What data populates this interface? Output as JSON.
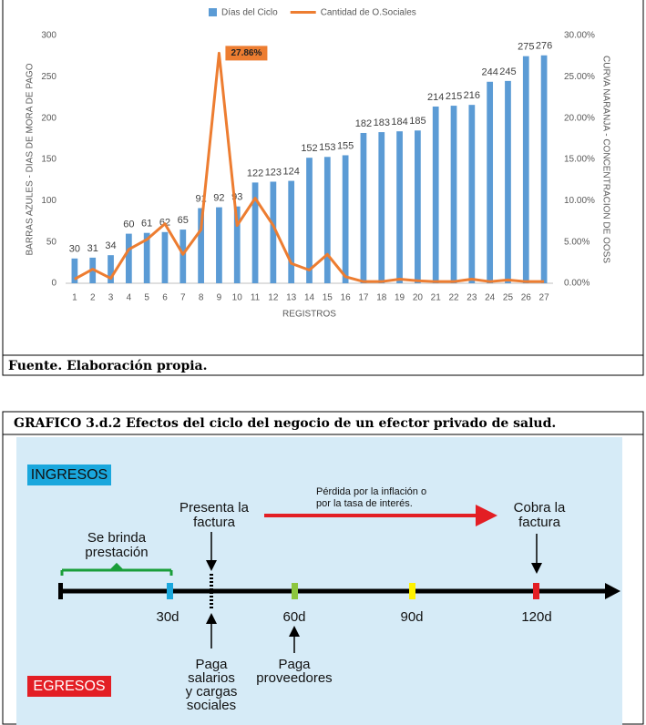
{
  "chart_data": {
    "type": "bar",
    "categories": [
      "1",
      "2",
      "3",
      "4",
      "5",
      "6",
      "7",
      "8",
      "9",
      "10",
      "11",
      "12",
      "13",
      "14",
      "15",
      "16",
      "17",
      "18",
      "19",
      "20",
      "21",
      "22",
      "23",
      "24",
      "25",
      "26",
      "27"
    ],
    "series": [
      {
        "name": "Días del Ciclo",
        "type": "bar",
        "color": "#5b9bd5",
        "values": [
          30,
          31,
          34,
          60,
          61,
          62,
          65,
          91,
          92,
          93,
          122,
          123,
          124,
          152,
          153,
          155,
          182,
          183,
          184,
          185,
          214,
          215,
          216,
          244,
          245,
          275,
          276
        ]
      },
      {
        "name": "Cantidad de O.Sociales",
        "type": "line",
        "color": "#ed7d31",
        "axis": "y2",
        "values": [
          0.5,
          1.7,
          0.6,
          4.1,
          5.3,
          7.2,
          3.5,
          6.5,
          27.86,
          7,
          10.3,
          7,
          2.4,
          1.6,
          3.5,
          0.8,
          0.2,
          0.2,
          0.5,
          0.3,
          0.2,
          0.2,
          0.5,
          0.2,
          0.4,
          0.2,
          0.2
        ],
        "value_labels": [
          null,
          null,
          null,
          null,
          null,
          null,
          null,
          null,
          "27.86%",
          null,
          null,
          null,
          null,
          null,
          null,
          null,
          null,
          null,
          null,
          null,
          null,
          null,
          null,
          null,
          null,
          null,
          null
        ]
      }
    ],
    "xlabel": "REGISTROS",
    "ylabel": "BARRAS AZULES - DIAS DE MORA DE PAGO",
    "y2label": "CURVA NARANJA - CONCENTRACION DE OOSS",
    "ylim": [
      0,
      300
    ],
    "yticks": [
      0,
      50,
      100,
      150,
      200,
      250,
      300
    ],
    "y2lim": [
      0,
      30
    ],
    "y2ticks": [
      {
        "value": 0,
        "label": "0.00%"
      },
      {
        "value": 5,
        "label": "5.00%"
      },
      {
        "value": 10,
        "label": "10.00%"
      },
      {
        "value": 15,
        "label": "15.00%"
      },
      {
        "value": 20,
        "label": "20.00%"
      },
      {
        "value": 25,
        "label": "25.00%"
      },
      {
        "value": 30,
        "label": "30.00%"
      }
    ],
    "grid": false,
    "legend": "top"
  },
  "source": "Fuente. Elaboración propia.",
  "figure_title": "GRAFICO 3.d.2 Efectos del ciclo del negocio de un efector privado de salud.",
  "diagram": {
    "income_label": "INGRESOS",
    "expense_label": "EGRESOS",
    "service": [
      "Se brinda",
      "prestación"
    ],
    "invoice": [
      "Presenta la",
      "factura"
    ],
    "loss": [
      "Pérdida por la inflación o",
      "por la tasa de interés."
    ],
    "collect": [
      "Cobra la",
      "factura"
    ],
    "days": [
      "30d",
      "60d",
      "90d",
      "120d"
    ],
    "salaries": [
      "Paga",
      "salarios",
      "y cargas",
      "sociales"
    ],
    "suppliers": [
      "Paga",
      "proveedores"
    ]
  }
}
